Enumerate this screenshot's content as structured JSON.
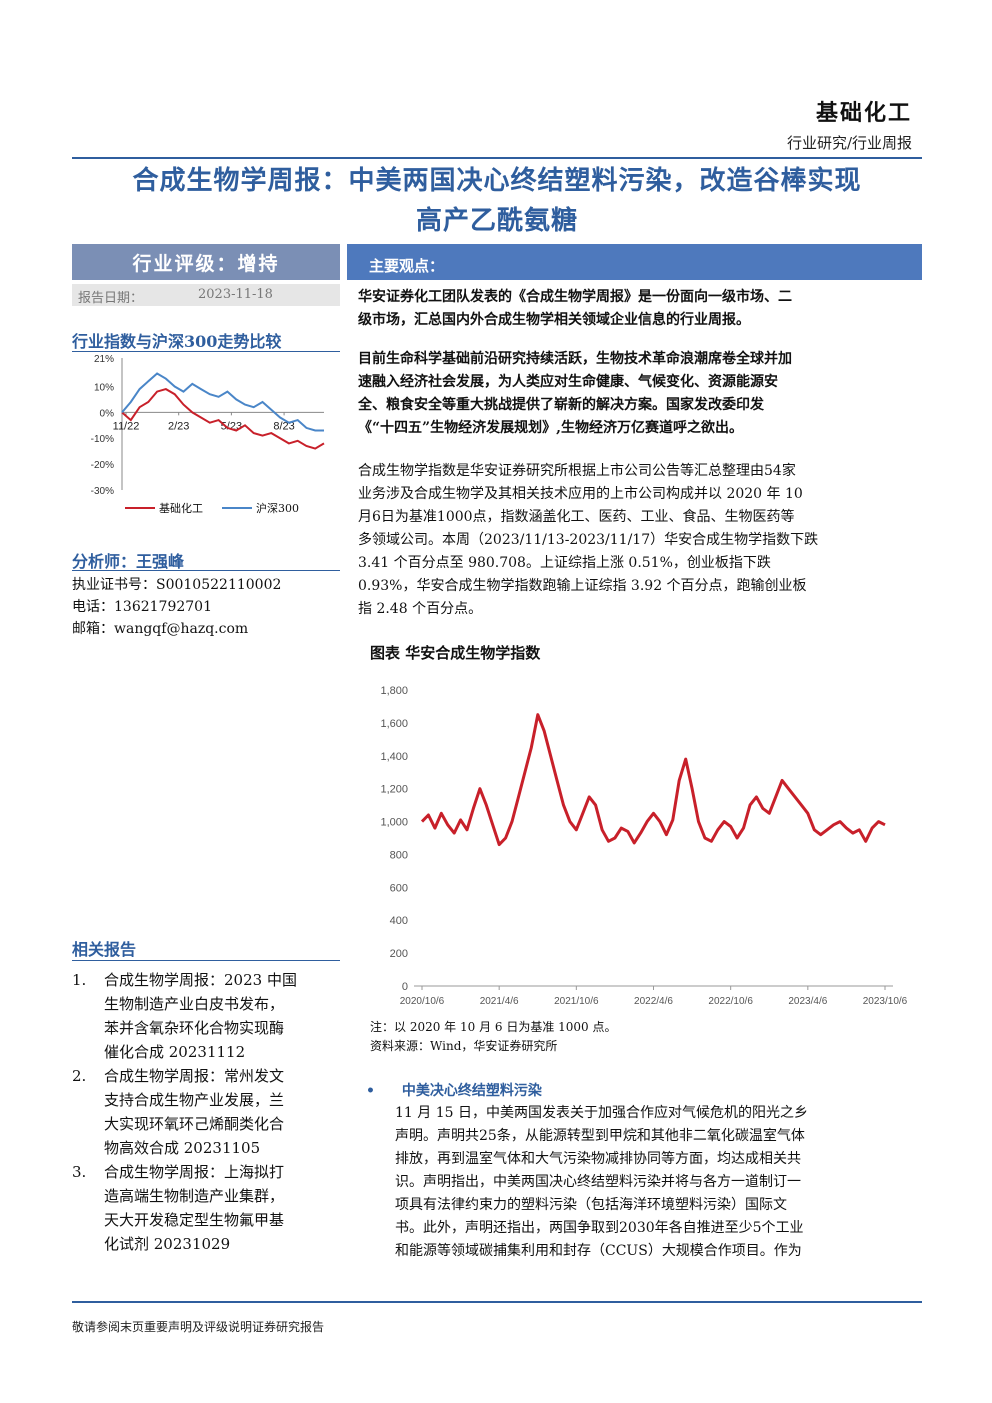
{
  "header": {
    "sector": "基础化工",
    "report_type": "行业研究/行业周报"
  },
  "title": {
    "line1": "合成生物学周报：中美两国决心终结塑料污染，改造谷棒实现",
    "line2": "高产乙酰氨糖"
  },
  "sidebar": {
    "rating": "行业评级：增持",
    "date_label": "报告日期：",
    "date_value": "2023-11-18",
    "trend_title": "行业指数与沪深300走势比较",
    "analyst_title": "分析师：王强峰",
    "license": "执业证书号：S0010522110002",
    "phone": "电话：13621792701",
    "email": "邮箱：wangqf@hazq.com",
    "related_title": "相关报告",
    "related": [
      {
        "num": "1.",
        "lines": [
          "合成生物学周报：2023 中国",
          "生物制造产业白皮书发布，",
          "苯并含氧杂环化合物实现酶",
          "催化合成 20231112"
        ]
      },
      {
        "num": "2.",
        "lines": [
          "合成生物学周报：常州发文",
          "支持合成生物产业发展，兰",
          "大实现环氧环己烯酮类化合",
          "物高效合成 20231105"
        ]
      },
      {
        "num": "3.",
        "lines": [
          "合成生物学周报：上海拟打",
          "造高端生物制造产业集群，",
          "天大开发稳定型生物氟甲基",
          "化试剂 20231029"
        ]
      }
    ]
  },
  "main": {
    "bar_label": "主要观点：",
    "p1": [
      "华安证券化工团队发表的《合成生物学周报》是一份面向一级市场、二",
      "级市场，汇总国内外合成生物学相关领域企业信息的行业周报。"
    ],
    "p2": [
      "目前生命科学基础前沿研究持续活跃，生物技术革命浪潮席卷全球并加",
      "速融入经济社会发展，为人类应对生命健康、气候变化、资源能源安",
      "全、粮食安全等重大挑战提供了崭新的解决方案。国家发改委印发",
      "《“十四五”生物经济发展规划》,生物经济万亿赛道呼之欲出。"
    ],
    "p3": [
      "合成生物学指数是华安证券研究所根据上市公司公告等汇总整理由54家",
      "业务涉及合成生物学及其相关技术应用的上市公司构成并以 2020 年 10",
      "月6日为基准1000点，指数涵盖化工、医药、工业、食品、生物医药等",
      "多领域公司。本周（2023/11/13-2023/11/17）华安合成生物学指数下跌",
      "3.41 个百分点至 980.708。上证综指上涨 0.51%，创业板指下跌",
      "0.93%，华安合成生物学指数跑输上证综指 3.92 个百分点，跑输创业板",
      "指 2.48 个百分点。"
    ],
    "chart_caption": "图表 华安合成生物学指数",
    "note": "注：以 2020 年 10 月 6 日为基准 1000 点。",
    "source": "资料来源：Wind，华安证券研究所",
    "bullet_title": "中美决心终结塑料污染",
    "p4": [
      "11 月 15 日，中美两国发表关于加强合作应对气候危机的阳光之乡",
      "声明。声明共25条，从能源转型到甲烷和其他非二氧化碳温室气体",
      "排放，再到温室气体和大气污染物减排协同等方面，均达成相关共",
      "识。声明指出，中美两国决心终结塑料污染并将与各方一道制订一",
      "项具有法律约束力的塑料污染（包括海洋环境塑料污染）国际文",
      "书。此外，声明还指出，两国争取到2030年各自推进至少5个工业",
      "和能源等领域碳捕集利用和封存（CCUS）大规模合作项目。作为"
    ]
  },
  "footer": "敬请参阅末页重要声明及评级说明证券研究报告",
  "colors": {
    "brand": "#2f5e9e",
    "index_line": "#c8202a",
    "hs300_line": "#4a86c8"
  },
  "chart_data": [
    {
      "type": "line",
      "title": "",
      "y_ticks": [
        "21%",
        "10%",
        "0%",
        "-10%",
        "-20%",
        "-30%"
      ],
      "ylim": [
        -30,
        21
      ],
      "x_ticks": [
        "11/22",
        "2/23",
        "5/23",
        "8/23"
      ],
      "legend_position": "bottom",
      "series": [
        {
          "name": "基础化工",
          "values": [
            0,
            -3,
            2,
            4,
            8,
            9,
            7,
            3,
            0,
            -2,
            -4,
            -3,
            -6,
            -7,
            -5,
            -8,
            -9,
            -8,
            -10,
            -12,
            -11,
            -13,
            -14,
            -12
          ]
        },
        {
          "name": "沪深300",
          "values": [
            0,
            4,
            9,
            12,
            15,
            13,
            10,
            8,
            11,
            9,
            7,
            6,
            8,
            5,
            3,
            2,
            4,
            1,
            -2,
            -4,
            -3,
            -6,
            -7,
            -7
          ]
        }
      ]
    },
    {
      "type": "line",
      "title": "图表 华安合成生物学指数",
      "ylim": [
        0,
        1800
      ],
      "y_ticks": [
        "1,800",
        "1,600",
        "1,400",
        "1,200",
        "1,000",
        "800",
        "600",
        "400",
        "200",
        "0"
      ],
      "x_ticks": [
        "2020/10/6",
        "2021/4/6",
        "2021/10/6",
        "2022/4/6",
        "2022/10/6",
        "2023/4/6",
        "2023/10/6"
      ],
      "series": [
        {
          "name": "",
          "values": [
            1000,
            1040,
            960,
            1050,
            980,
            930,
            1010,
            950,
            1080,
            1200,
            1100,
            980,
            860,
            900,
            1000,
            1150,
            1300,
            1450,
            1650,
            1550,
            1400,
            1250,
            1100,
            1000,
            950,
            1050,
            1150,
            1100,
            950,
            880,
            900,
            960,
            940,
            870,
            930,
            1000,
            1050,
            1000,
            920,
            1010,
            1250,
            1380,
            1200,
            1000,
            900,
            880,
            950,
            1000,
            970,
            900,
            960,
            1100,
            1150,
            1080,
            1050,
            1150,
            1250,
            1200,
            1150,
            1100,
            1050,
            950,
            920,
            950,
            980,
            1000,
            960,
            930,
            950,
            880,
            960,
            1000,
            980
          ]
        }
      ]
    }
  ]
}
